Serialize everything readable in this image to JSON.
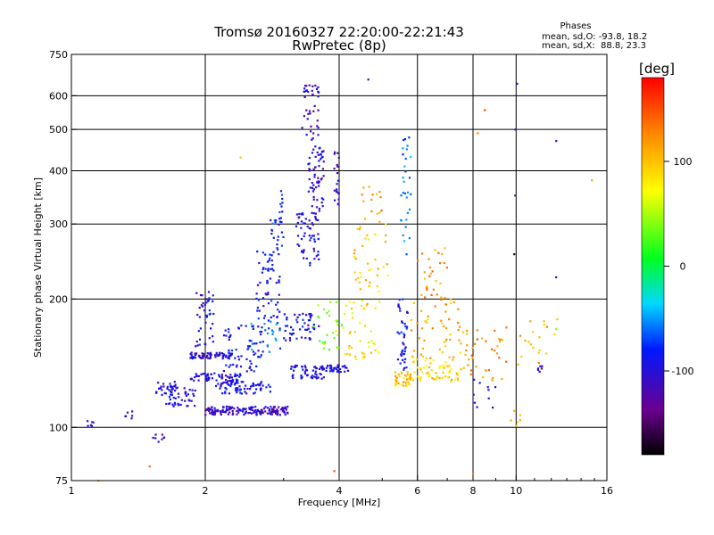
{
  "chart_data": {
    "type": "scatter",
    "title": "Tromsø 20160327 22:20:00-22:21:43",
    "subtitle": "RwPretec (8p)",
    "xlabel": "Frequency [MHz]",
    "ylabel": "Stationary phase Virtual Height [km]",
    "x_scale": "log",
    "y_scale": "log",
    "xlim": [
      1,
      16
    ],
    "ylim": [
      75,
      750
    ],
    "x_ticks": [
      1,
      2,
      4,
      6,
      8,
      10,
      16
    ],
    "y_ticks": [
      75,
      100,
      200,
      300,
      400,
      500,
      600,
      750
    ],
    "x_grid": [
      2,
      4,
      6,
      8,
      10
    ],
    "y_grid": [
      100,
      200,
      300,
      400,
      500,
      600
    ],
    "info": {
      "heading": "Phases",
      "line1": "mean, sd,O: -93.8, 18.2",
      "line2": "mean, sd,X:  88.8, 23.3"
    },
    "colorbar": {
      "label": "[deg]",
      "ticks": [
        100,
        0,
        -100
      ],
      "range": [
        -180,
        180
      ]
    },
    "clusters": [
      {
        "f": [
          1.08,
          1.12
        ],
        "h": [
          100,
          104
        ],
        "phase": -110,
        "n": 6
      },
      {
        "f": [
          1.3,
          1.38
        ],
        "h": [
          104,
          110
        ],
        "phase": -100,
        "n": 6
      },
      {
        "f": [
          1.5,
          1.62
        ],
        "h": [
          92,
          98
        ],
        "phase": -110,
        "n": 8
      },
      {
        "f": [
          1.55,
          1.75
        ],
        "h": [
          118,
          128
        ],
        "phase": -105,
        "n": 30
      },
      {
        "f": [
          1.6,
          1.9
        ],
        "h": [
          112,
          125
        ],
        "phase": -100,
        "n": 40
      },
      {
        "f": [
          1.85,
          2.3
        ],
        "h": [
          145,
          150
        ],
        "phase": -105,
        "n": 70
      },
      {
        "f": [
          1.85,
          2.4
        ],
        "h": [
          128,
          134
        ],
        "phase": -100,
        "n": 60
      },
      {
        "f": [
          1.9,
          2.1
        ],
        "h": [
          155,
          215
        ],
        "phase": -95,
        "n": 40
      },
      {
        "f": [
          2.0,
          3.1
        ],
        "h": [
          107,
          112
        ],
        "phase": -110,
        "n": 160
      },
      {
        "f": [
          2.1,
          2.8
        ],
        "h": [
          120,
          128
        ],
        "phase": -95,
        "n": 70
      },
      {
        "f": [
          2.2,
          2.7
        ],
        "h": [
          135,
          175
        ],
        "phase": -90,
        "n": 60
      },
      {
        "f": [
          2.6,
          2.95
        ],
        "h": [
          180,
          260
        ],
        "phase": -90,
        "n": 60
      },
      {
        "f": [
          2.8,
          3.0
        ],
        "h": [
          260,
          360
        ],
        "phase": -80,
        "n": 30
      },
      {
        "f": [
          2.5,
          3.0
        ],
        "h": [
          150,
          180
        ],
        "phase": -60,
        "n": 30
      },
      {
        "f": [
          3.0,
          3.6
        ],
        "h": [
          160,
          185
        ],
        "phase": -95,
        "n": 50
      },
      {
        "f": [
          3.1,
          3.7
        ],
        "h": [
          130,
          140
        ],
        "phase": -100,
        "n": 50
      },
      {
        "f": [
          3.2,
          3.6
        ],
        "h": [
          240,
          320
        ],
        "phase": -100,
        "n": 60
      },
      {
        "f": [
          3.4,
          3.7
        ],
        "h": [
          320,
          460
        ],
        "phase": -105,
        "n": 60
      },
      {
        "f": [
          3.3,
          3.6
        ],
        "h": [
          470,
          640
        ],
        "phase": -110,
        "n": 40
      },
      {
        "f": [
          3.6,
          4.2
        ],
        "h": [
          135,
          140
        ],
        "phase": -100,
        "n": 40
      },
      {
        "f": [
          3.5,
          4.1
        ],
        "h": [
          150,
          200
        ],
        "phase": 40,
        "n": 30
      },
      {
        "f": [
          3.9,
          4.0
        ],
        "h": [
          330,
          450
        ],
        "phase": -110,
        "n": 20
      },
      {
        "f": [
          4.1,
          4.9
        ],
        "h": [
          140,
          200
        ],
        "phase": 80,
        "n": 40
      },
      {
        "f": [
          4.3,
          5.2
        ],
        "h": [
          190,
          300
        ],
        "phase": 95,
        "n": 40
      },
      {
        "f": [
          4.5,
          5.0
        ],
        "h": [
          300,
          380
        ],
        "phase": 120,
        "n": 15
      },
      {
        "f": [
          5.3,
          5.8
        ],
        "h": [
          125,
          135
        ],
        "phase": 100,
        "n": 40
      },
      {
        "f": [
          5.4,
          5.7
        ],
        "h": [
          135,
          200
        ],
        "phase": -90,
        "n": 40
      },
      {
        "f": [
          5.5,
          5.8
        ],
        "h": [
          250,
          480
        ],
        "phase": -60,
        "n": 30
      },
      {
        "f": [
          5.8,
          7.5
        ],
        "h": [
          128,
          145
        ],
        "phase": 90,
        "n": 60
      },
      {
        "f": [
          5.8,
          7.5
        ],
        "h": [
          145,
          200
        ],
        "phase": 110,
        "n": 50
      },
      {
        "f": [
          6.0,
          7.0
        ],
        "h": [
          200,
          270
        ],
        "phase": 120,
        "n": 30
      },
      {
        "f": [
          7.5,
          9.5
        ],
        "h": [
          128,
          175
        ],
        "phase": 120,
        "n": 40
      },
      {
        "f": [
          8.0,
          9.0
        ],
        "h": [
          110,
          130
        ],
        "phase": -90,
        "n": 10
      },
      {
        "f": [
          10.0,
          12.5
        ],
        "h": [
          140,
          180
        ],
        "phase": 110,
        "n": 20
      },
      {
        "f": [
          11.2,
          11.5
        ],
        "h": [
          135,
          140
        ],
        "phase": -100,
        "n": 6
      },
      {
        "f": [
          9.5,
          10.5
        ],
        "h": [
          100,
          110
        ],
        "phase": 100,
        "n": 6
      }
    ],
    "outliers": [
      {
        "f": 4.65,
        "h": 655,
        "phase": -90
      },
      {
        "f": 8.5,
        "h": 555,
        "phase": 150
      },
      {
        "f": 10.05,
        "h": 640,
        "phase": -110
      },
      {
        "f": 8.2,
        "h": 490,
        "phase": 130
      },
      {
        "f": 9.95,
        "h": 500,
        "phase": -120
      },
      {
        "f": 12.3,
        "h": 470,
        "phase": -100
      },
      {
        "f": 9.95,
        "h": 350,
        "phase": -110
      },
      {
        "f": 14.8,
        "h": 380,
        "phase": 110
      },
      {
        "f": 9.9,
        "h": 255,
        "phase": -170
      },
      {
        "f": 12.3,
        "h": 225,
        "phase": -90
      },
      {
        "f": 12.3,
        "h": 170,
        "phase": 40
      },
      {
        "f": 3.9,
        "h": 79,
        "phase": 150
      },
      {
        "f": 1.15,
        "h": 75,
        "phase": 110
      },
      {
        "f": 1.5,
        "h": 81,
        "phase": 140
      },
      {
        "f": 2.4,
        "h": 430,
        "phase": 100
      },
      {
        "f": 8.0,
        "h": 78,
        "phase": 130
      }
    ]
  }
}
